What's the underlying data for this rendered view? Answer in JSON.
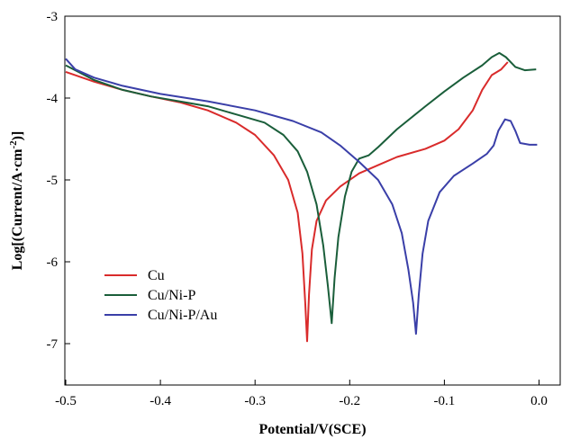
{
  "chart_data": {
    "type": "line",
    "title": "",
    "xlabel": "Potential/V(SCE)",
    "ylabel_prefix": "Log[(Current/A·cm",
    "ylabel_sup": "-2",
    "ylabel_suffix": ")]",
    "xlim": [
      -0.5,
      0.02
    ],
    "ylim": [
      -7.5,
      -3
    ],
    "x_ticks": [
      -0.5,
      -0.4,
      -0.3,
      -0.2,
      -0.1,
      0.0
    ],
    "x_tick_labels": [
      "-0.5",
      "-0.4",
      "-0.3",
      "-0.2",
      "-0.1",
      "0.0"
    ],
    "y_ticks": [
      -7,
      -6,
      -5,
      -4,
      -3
    ],
    "y_tick_labels": [
      "-7",
      "-6",
      "-5",
      "-4",
      "-3"
    ],
    "grid": false,
    "legend_position": "bottom-left",
    "series": [
      {
        "name": "Cu",
        "color": "#d92b2b",
        "points": [
          [
            -0.5,
            -3.68
          ],
          [
            -0.47,
            -3.8
          ],
          [
            -0.44,
            -3.9
          ],
          [
            -0.41,
            -3.98
          ],
          [
            -0.38,
            -4.05
          ],
          [
            -0.35,
            -4.15
          ],
          [
            -0.32,
            -4.3
          ],
          [
            -0.3,
            -4.45
          ],
          [
            -0.28,
            -4.7
          ],
          [
            -0.265,
            -5.0
          ],
          [
            -0.255,
            -5.4
          ],
          [
            -0.25,
            -5.9
          ],
          [
            -0.247,
            -6.5
          ],
          [
            -0.245,
            -6.97
          ],
          [
            -0.243,
            -6.4
          ],
          [
            -0.24,
            -5.85
          ],
          [
            -0.235,
            -5.5
          ],
          [
            -0.225,
            -5.25
          ],
          [
            -0.21,
            -5.08
          ],
          [
            -0.19,
            -4.92
          ],
          [
            -0.17,
            -4.82
          ],
          [
            -0.15,
            -4.72
          ],
          [
            -0.12,
            -4.62
          ],
          [
            -0.1,
            -4.52
          ],
          [
            -0.085,
            -4.38
          ],
          [
            -0.07,
            -4.15
          ],
          [
            -0.06,
            -3.9
          ],
          [
            -0.05,
            -3.72
          ],
          [
            -0.04,
            -3.65
          ],
          [
            -0.033,
            -3.56
          ]
        ]
      },
      {
        "name": "Cu/Ni-P",
        "color": "#1a5e3a",
        "points": [
          [
            -0.5,
            -3.6
          ],
          [
            -0.47,
            -3.78
          ],
          [
            -0.44,
            -3.9
          ],
          [
            -0.41,
            -3.98
          ],
          [
            -0.38,
            -4.04
          ],
          [
            -0.35,
            -4.1
          ],
          [
            -0.32,
            -4.2
          ],
          [
            -0.29,
            -4.3
          ],
          [
            -0.27,
            -4.45
          ],
          [
            -0.255,
            -4.65
          ],
          [
            -0.245,
            -4.9
          ],
          [
            -0.235,
            -5.3
          ],
          [
            -0.228,
            -5.8
          ],
          [
            -0.223,
            -6.3
          ],
          [
            -0.219,
            -6.75
          ],
          [
            -0.216,
            -6.2
          ],
          [
            -0.212,
            -5.7
          ],
          [
            -0.205,
            -5.2
          ],
          [
            -0.198,
            -4.9
          ],
          [
            -0.19,
            -4.74
          ],
          [
            -0.18,
            -4.7
          ],
          [
            -0.17,
            -4.6
          ],
          [
            -0.15,
            -4.38
          ],
          [
            -0.12,
            -4.1
          ],
          [
            -0.1,
            -3.92
          ],
          [
            -0.08,
            -3.75
          ],
          [
            -0.06,
            -3.6
          ],
          [
            -0.05,
            -3.5
          ],
          [
            -0.042,
            -3.45
          ],
          [
            -0.035,
            -3.5
          ],
          [
            -0.025,
            -3.62
          ],
          [
            -0.015,
            -3.66
          ],
          [
            -0.003,
            -3.65
          ]
        ]
      },
      {
        "name": "Cu/Ni-P/Au",
        "color": "#3a3fa8",
        "points": [
          [
            -0.5,
            -3.52
          ],
          [
            -0.49,
            -3.65
          ],
          [
            -0.47,
            -3.75
          ],
          [
            -0.44,
            -3.85
          ],
          [
            -0.4,
            -3.95
          ],
          [
            -0.35,
            -4.04
          ],
          [
            -0.3,
            -4.15
          ],
          [
            -0.26,
            -4.28
          ],
          [
            -0.23,
            -4.42
          ],
          [
            -0.21,
            -4.58
          ],
          [
            -0.19,
            -4.78
          ],
          [
            -0.17,
            -5.0
          ],
          [
            -0.155,
            -5.3
          ],
          [
            -0.145,
            -5.65
          ],
          [
            -0.138,
            -6.1
          ],
          [
            -0.133,
            -6.5
          ],
          [
            -0.13,
            -6.88
          ],
          [
            -0.127,
            -6.4
          ],
          [
            -0.123,
            -5.9
          ],
          [
            -0.117,
            -5.5
          ],
          [
            -0.105,
            -5.15
          ],
          [
            -0.09,
            -4.95
          ],
          [
            -0.07,
            -4.8
          ],
          [
            -0.055,
            -4.68
          ],
          [
            -0.048,
            -4.58
          ],
          [
            -0.043,
            -4.4
          ],
          [
            -0.036,
            -4.26
          ],
          [
            -0.03,
            -4.28
          ],
          [
            -0.025,
            -4.4
          ],
          [
            -0.02,
            -4.55
          ],
          [
            -0.01,
            -4.57
          ],
          [
            -0.002,
            -4.57
          ]
        ]
      }
    ]
  }
}
